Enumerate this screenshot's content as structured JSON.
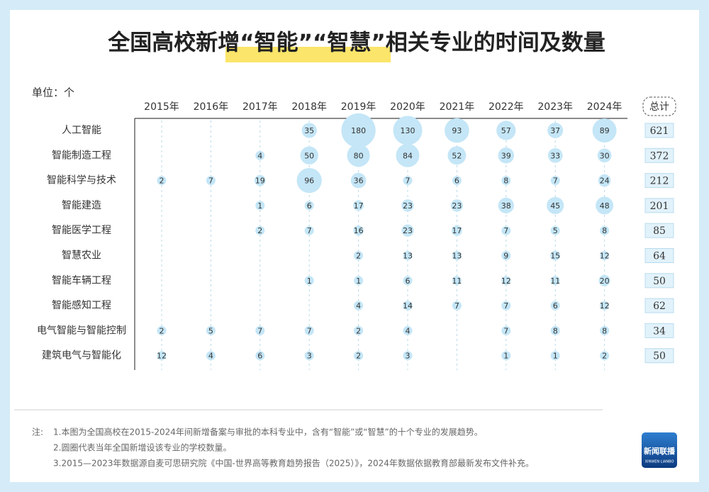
{
  "chart_data": {
    "type": "bubble-matrix",
    "title": "全国高校新增“智能”“智慧”相关专业的时间及数量",
    "unit_label": "单位：个",
    "total_label": "总计",
    "color": "#c4e6f7",
    "categories": [
      "2015年",
      "2016年",
      "2017年",
      "2018年",
      "2019年",
      "2020年",
      "2021年",
      "2022年",
      "2023年",
      "2024年"
    ],
    "rows": [
      {
        "name": "人工智能",
        "values": [
          null,
          null,
          null,
          35,
          180,
          130,
          93,
          57,
          37,
          89
        ],
        "total": 621
      },
      {
        "name": "智能制造工程",
        "values": [
          null,
          null,
          4,
          50,
          80,
          84,
          52,
          39,
          33,
          30
        ],
        "total": 372
      },
      {
        "name": "智能科学与技术",
        "values": [
          2,
          7,
          19,
          96,
          36,
          7,
          6,
          8,
          7,
          24
        ],
        "total": 212
      },
      {
        "name": "智能建造",
        "values": [
          null,
          null,
          1,
          6,
          17,
          23,
          23,
          38,
          45,
          48
        ],
        "total": 201
      },
      {
        "name": "智能医学工程",
        "values": [
          null,
          null,
          2,
          7,
          16,
          23,
          17,
          7,
          5,
          8
        ],
        "total": 85
      },
      {
        "name": "智慧农业",
        "values": [
          null,
          null,
          null,
          null,
          2,
          13,
          13,
          9,
          15,
          12
        ],
        "total": 64
      },
      {
        "name": "智能车辆工程",
        "values": [
          null,
          null,
          null,
          1,
          1,
          6,
          11,
          12,
          11,
          20
        ],
        "total": 50
      },
      {
        "name": "智能感知工程",
        "values": [
          null,
          null,
          null,
          null,
          4,
          14,
          7,
          7,
          6,
          12
        ],
        "total": 62
      },
      {
        "name": "电气智能与智能控制",
        "values": [
          2,
          5,
          7,
          7,
          2,
          4,
          null,
          7,
          8,
          8
        ],
        "total": 34
      },
      {
        "name": "建筑电气与智能化",
        "values": [
          12,
          4,
          6,
          3,
          2,
          3,
          null,
          1,
          1,
          2
        ],
        "total": 50
      }
    ],
    "notes_prefix": "注:",
    "notes": [
      "1.本图为全国高校在2015-2024年间新增备案与审批的本科专业中，含有“智能”或“智慧”的十个专业的发展趋势。",
      "2.圆圈代表当年全国新增设该专业的学校数量。",
      "3.2015—2023年数据源自麦可思研究院《中国-世界高等教育趋势报告（2025）》，2024年数据依据教育部最新发布文件补充。"
    ],
    "logo": {
      "name": "新闻联播",
      "subtitle": "XINWEN LIANBO"
    }
  }
}
